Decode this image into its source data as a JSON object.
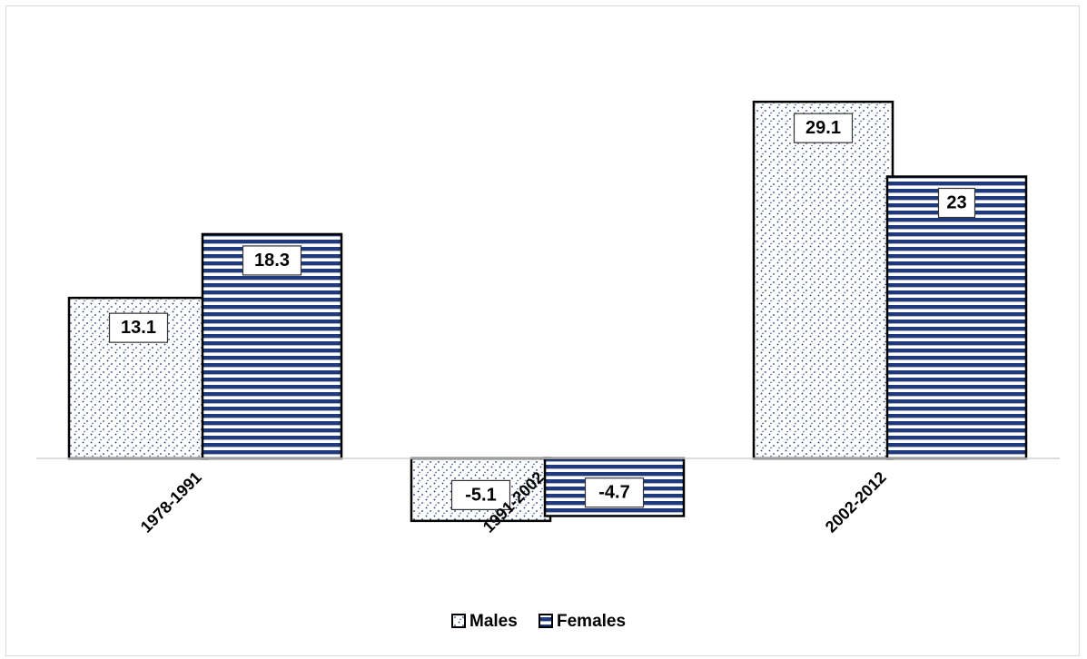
{
  "chart_data": {
    "type": "bar",
    "title": "",
    "xlabel": "",
    "ylabel": "",
    "categories": [
      "1978-1991",
      "1991-2002",
      "2002-2012"
    ],
    "series": [
      {
        "name": "Males",
        "values": [
          13.1,
          -5.1,
          29.1
        ],
        "pattern": "dots",
        "color": "#1f3a7a"
      },
      {
        "name": "Females",
        "values": [
          18.3,
          -4.7,
          23
        ],
        "pattern": "horizontal-stripes",
        "color": "#1f3a7a"
      }
    ],
    "data_labels": [
      [
        "13.1",
        "-5.1",
        "29.1"
      ],
      [
        "18.3",
        "-4.7",
        "23"
      ]
    ],
    "ylim": [
      -6,
      32
    ],
    "grid": false,
    "legend": {
      "placement": "bottom"
    }
  }
}
